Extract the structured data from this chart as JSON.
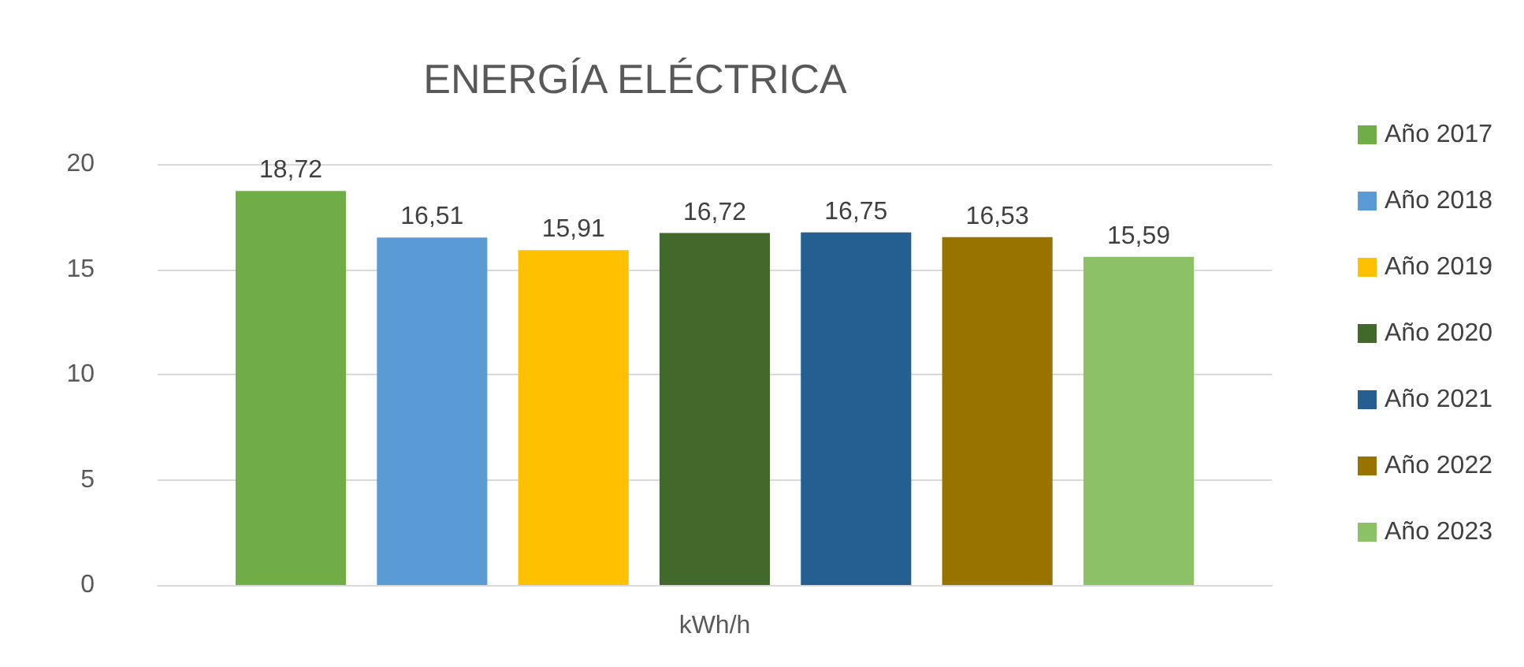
{
  "chart_data": {
    "type": "bar",
    "title": "ENERGÍA ELÉCTRICA",
    "categories": [
      "kWh/h"
    ],
    "series": [
      {
        "name": "Año 2017",
        "color": "#70ad47",
        "values": [
          18.72
        ],
        "value_labels": [
          "18,72"
        ]
      },
      {
        "name": "Año 2018",
        "color": "#5b9bd5",
        "values": [
          16.51
        ],
        "value_labels": [
          "16,51"
        ]
      },
      {
        "name": "Año 2019",
        "color": "#ffc000",
        "values": [
          15.91
        ],
        "value_labels": [
          "15,91"
        ]
      },
      {
        "name": "Año 2020",
        "color": "#43682b",
        "values": [
          16.72
        ],
        "value_labels": [
          "16,72"
        ]
      },
      {
        "name": "Año 2021",
        "color": "#255e91",
        "values": [
          16.75
        ],
        "value_labels": [
          "16,75"
        ]
      },
      {
        "name": "Año 2022",
        "color": "#997300",
        "values": [
          16.53
        ],
        "value_labels": [
          "16,53"
        ]
      },
      {
        "name": "Año 2023",
        "color": "#8cc168",
        "values": [
          15.59
        ],
        "value_labels": [
          "15,59"
        ]
      }
    ],
    "ylim": [
      0,
      20
    ],
    "yticks": [
      0,
      5,
      10,
      15,
      20
    ],
    "grid": "y",
    "legend": "right"
  }
}
